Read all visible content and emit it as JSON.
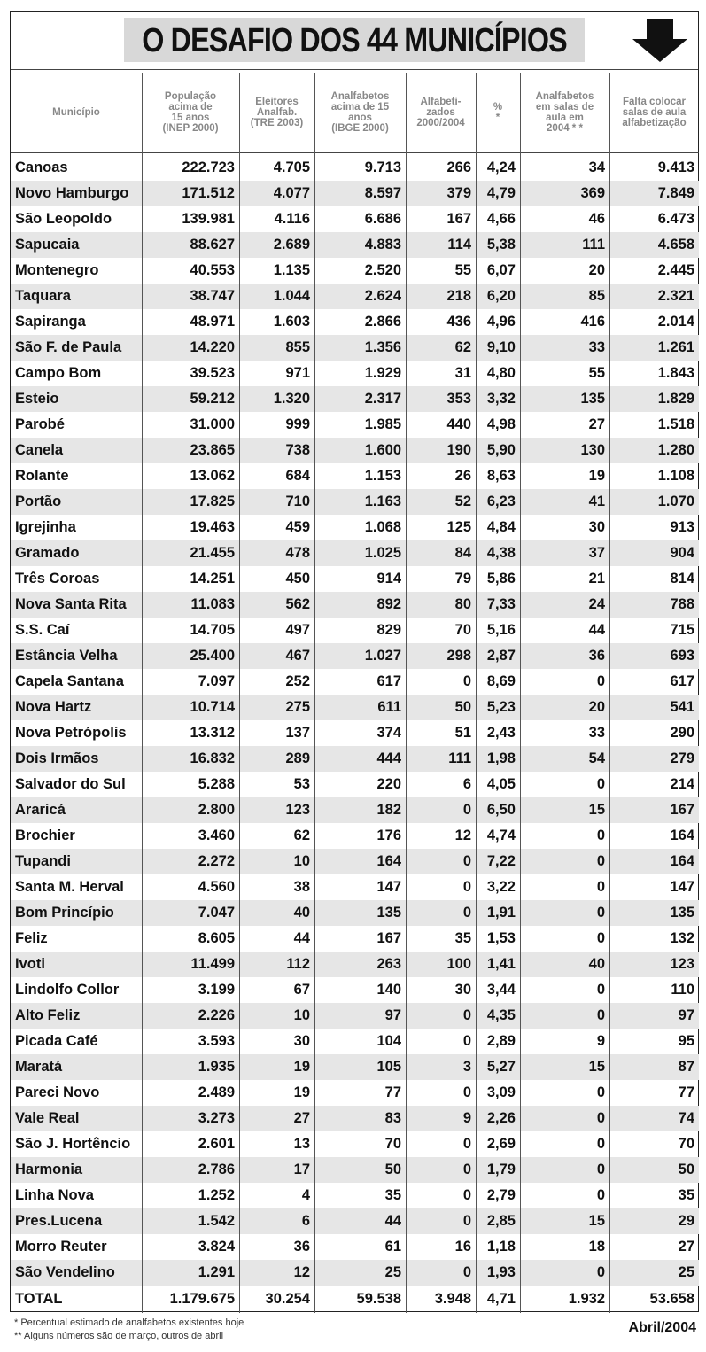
{
  "header": {
    "title": "O DESAFIO DOS 44 MUNICÍPIOS"
  },
  "table": {
    "columns": [
      [
        "Município"
      ],
      [
        "População",
        "acima de",
        "15 anos",
        "(INEP 2000)"
      ],
      [
        "Eleitores",
        "Analfab.",
        "(TRE 2003)"
      ],
      [
        "Analfabetos",
        "acima de 15",
        "anos",
        "(IBGE 2000)"
      ],
      [
        "Alfabeti-",
        "zados",
        "2000/2004"
      ],
      [
        "%",
        "*"
      ],
      [
        "Analfabetos",
        "em salas de",
        "aula em",
        "2004 * *"
      ],
      [
        "Falta colocar",
        "salas de aula",
        "alfabetização"
      ]
    ],
    "rows": [
      [
        "Canoas",
        "222.723",
        "4.705",
        "9.713",
        "266",
        "4,24",
        "34",
        "9.413"
      ],
      [
        "Novo Hamburgo",
        "171.512",
        "4.077",
        "8.597",
        "379",
        "4,79",
        "369",
        "7.849"
      ],
      [
        "São Leopoldo",
        "139.981",
        "4.116",
        "6.686",
        "167",
        "4,66",
        "46",
        "6.473"
      ],
      [
        "Sapucaia",
        "88.627",
        "2.689",
        "4.883",
        "114",
        "5,38",
        "111",
        "4.658"
      ],
      [
        "Montenegro",
        "40.553",
        "1.135",
        "2.520",
        "55",
        "6,07",
        "20",
        "2.445"
      ],
      [
        "Taquara",
        "38.747",
        "1.044",
        "2.624",
        "218",
        "6,20",
        "85",
        "2.321"
      ],
      [
        "Sapiranga",
        "48.971",
        "1.603",
        "2.866",
        "436",
        "4,96",
        "416",
        "2.014"
      ],
      [
        "São F. de Paula",
        "14.220",
        "855",
        "1.356",
        "62",
        "9,10",
        "33",
        "1.261"
      ],
      [
        "Campo Bom",
        "39.523",
        "971",
        "1.929",
        "31",
        "4,80",
        "55",
        "1.843"
      ],
      [
        "Esteio",
        "59.212",
        "1.320",
        "2.317",
        "353",
        "3,32",
        "135",
        "1.829"
      ],
      [
        "Parobé",
        "31.000",
        "999",
        "1.985",
        "440",
        "4,98",
        "27",
        "1.518"
      ],
      [
        "Canela",
        "23.865",
        "738",
        "1.600",
        "190",
        "5,90",
        "130",
        "1.280"
      ],
      [
        "Rolante",
        "13.062",
        "684",
        "1.153",
        "26",
        "8,63",
        "19",
        "1.108"
      ],
      [
        "Portão",
        "17.825",
        "710",
        "1.163",
        "52",
        "6,23",
        "41",
        "1.070"
      ],
      [
        "Igrejinha",
        "19.463",
        "459",
        "1.068",
        "125",
        "4,84",
        "30",
        "913"
      ],
      [
        "Gramado",
        "21.455",
        "478",
        "1.025",
        "84",
        "4,38",
        "37",
        "904"
      ],
      [
        "Três Coroas",
        "14.251",
        "450",
        "914",
        "79",
        "5,86",
        "21",
        "814"
      ],
      [
        "Nova Santa Rita",
        "11.083",
        "562",
        "892",
        "80",
        "7,33",
        "24",
        "788"
      ],
      [
        "S.S. Caí",
        "14.705",
        "497",
        "829",
        "70",
        "5,16",
        "44",
        "715"
      ],
      [
        "Estância Velha",
        "25.400",
        "467",
        "1.027",
        "298",
        "2,87",
        "36",
        "693"
      ],
      [
        "Capela Santana",
        "7.097",
        "252",
        "617",
        "0",
        "8,69",
        "0",
        "617"
      ],
      [
        "Nova Hartz",
        "10.714",
        "275",
        "611",
        "50",
        "5,23",
        "20",
        "541"
      ],
      [
        "Nova Petrópolis",
        "13.312",
        "137",
        "374",
        "51",
        "2,43",
        "33",
        "290"
      ],
      [
        "Dois Irmãos",
        "16.832",
        "289",
        "444",
        "111",
        "1,98",
        "54",
        "279"
      ],
      [
        "Salvador do Sul",
        "5.288",
        "53",
        "220",
        "6",
        "4,05",
        "0",
        "214"
      ],
      [
        "Araricá",
        "2.800",
        "123",
        "182",
        "0",
        "6,50",
        "15",
        "167"
      ],
      [
        "Brochier",
        "3.460",
        "62",
        "176",
        "12",
        "4,74",
        "0",
        "164"
      ],
      [
        "Tupandi",
        "2.272",
        "10",
        "164",
        "0",
        "7,22",
        "0",
        "164"
      ],
      [
        "Santa M. Herval",
        "4.560",
        "38",
        "147",
        "0",
        "3,22",
        "0",
        "147"
      ],
      [
        "Bom Princípio",
        "7.047",
        "40",
        "135",
        "0",
        "1,91",
        "0",
        "135"
      ],
      [
        "Feliz",
        "8.605",
        "44",
        "167",
        "35",
        "1,53",
        "0",
        "132"
      ],
      [
        "Ivoti",
        "11.499",
        "112",
        "263",
        "100",
        "1,41",
        "40",
        "123"
      ],
      [
        "Lindolfo Collor",
        "3.199",
        "67",
        "140",
        "30",
        "3,44",
        "0",
        "110"
      ],
      [
        "Alto Feliz",
        "2.226",
        "10",
        "97",
        "0",
        "4,35",
        "0",
        "97"
      ],
      [
        "Picada Café",
        "3.593",
        "30",
        "104",
        "0",
        "2,89",
        "9",
        "95"
      ],
      [
        "Maratá",
        "1.935",
        "19",
        "105",
        "3",
        "5,27",
        "15",
        "87"
      ],
      [
        "Pareci Novo",
        "2.489",
        "19",
        "77",
        "0",
        "3,09",
        "0",
        "77"
      ],
      [
        "Vale Real",
        "3.273",
        "27",
        "83",
        "9",
        "2,26",
        "0",
        "74"
      ],
      [
        "São J. Hortêncio",
        "2.601",
        "13",
        "70",
        "0",
        "2,69",
        "0",
        "70"
      ],
      [
        "Harmonia",
        "2.786",
        "17",
        "50",
        "0",
        "1,79",
        "0",
        "50"
      ],
      [
        "Linha Nova",
        "1.252",
        "4",
        "35",
        "0",
        "2,79",
        "0",
        "35"
      ],
      [
        "Pres.Lucena",
        "1.542",
        "6",
        "44",
        "0",
        "2,85",
        "15",
        "29"
      ],
      [
        "Morro Reuter",
        "3.824",
        "36",
        "61",
        "16",
        "1,18",
        "18",
        "27"
      ],
      [
        "São Vendelino",
        "1.291",
        "12",
        "25",
        "0",
        "1,93",
        "0",
        "25"
      ]
    ],
    "total": [
      "TOTAL",
      "1.179.675",
      "30.254",
      "59.538",
      "3.948",
      "4,71",
      "1.932",
      "53.658"
    ]
  },
  "footer": {
    "notes": [
      "* Percentual estimado de analfabetos existentes hoje",
      "** Alguns números são de março, outros de abril"
    ],
    "date": "Abril/2004"
  }
}
